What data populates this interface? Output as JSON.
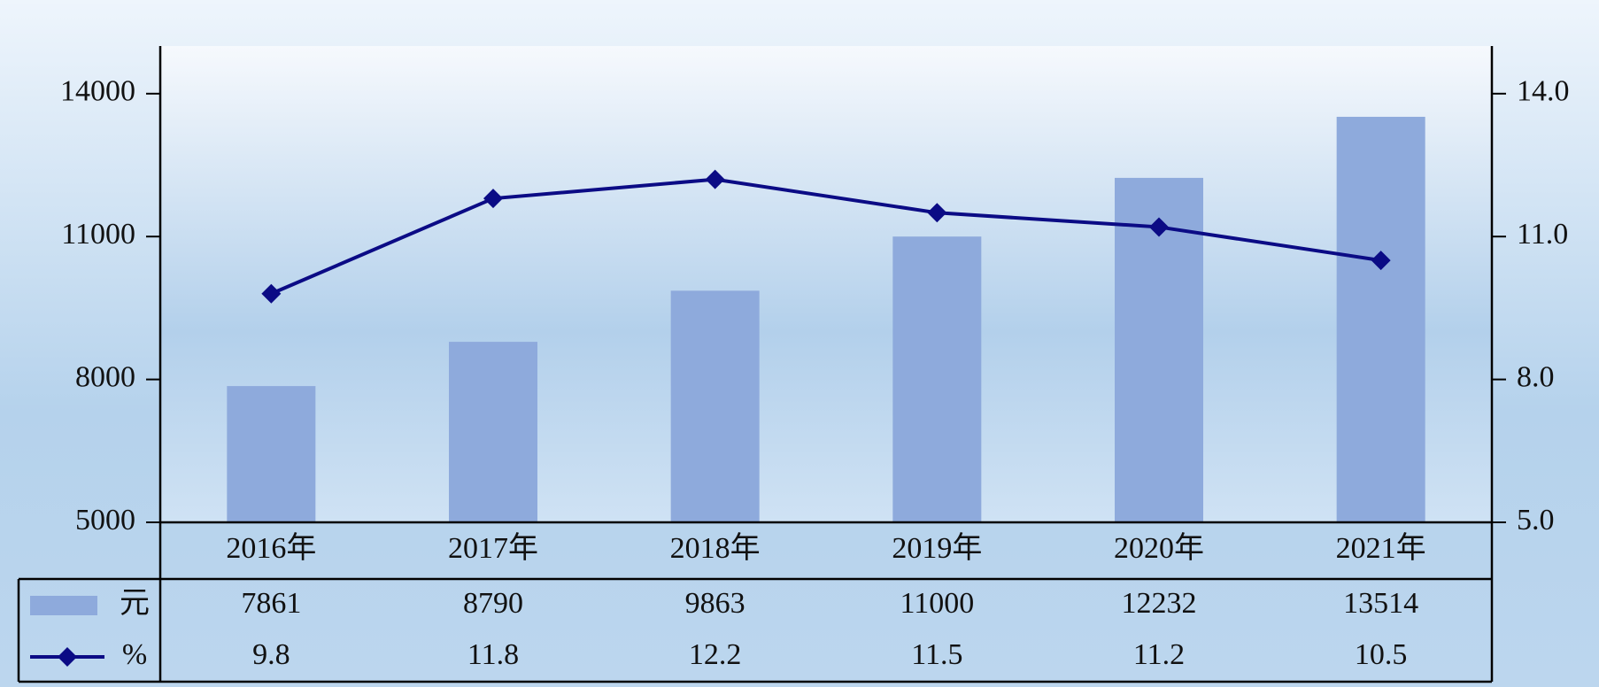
{
  "chart_data": {
    "type": "bar",
    "categories": [
      "2016年",
      "2017年",
      "2018年",
      "2019年",
      "2020年",
      "2021年"
    ],
    "series": [
      {
        "name": "元",
        "type": "bar",
        "color": "#8eaadc",
        "values": [
          7861,
          8790,
          9863,
          11000,
          12232,
          13514
        ]
      },
      {
        "name": "%",
        "type": "line",
        "axis": "y2",
        "color": "#0b0b85",
        "values": [
          9.8,
          11.8,
          12.2,
          11.5,
          11.2,
          10.5
        ],
        "value_labels": [
          "9.8",
          "11.8",
          "12.2",
          "11.5",
          "11.2",
          "10.5"
        ]
      }
    ],
    "ylim": [
      5000,
      15000
    ],
    "yticks": [
      5000,
      8000,
      11000,
      14000
    ],
    "y2lim": [
      5,
      15
    ],
    "y2ticks": [
      {
        "value": 5,
        "label": "5.0"
      },
      {
        "value": 8,
        "label": "8.0"
      },
      {
        "value": 11,
        "label": "11.0"
      },
      {
        "value": 14,
        "label": "14.0"
      }
    ],
    "data_table": true
  }
}
